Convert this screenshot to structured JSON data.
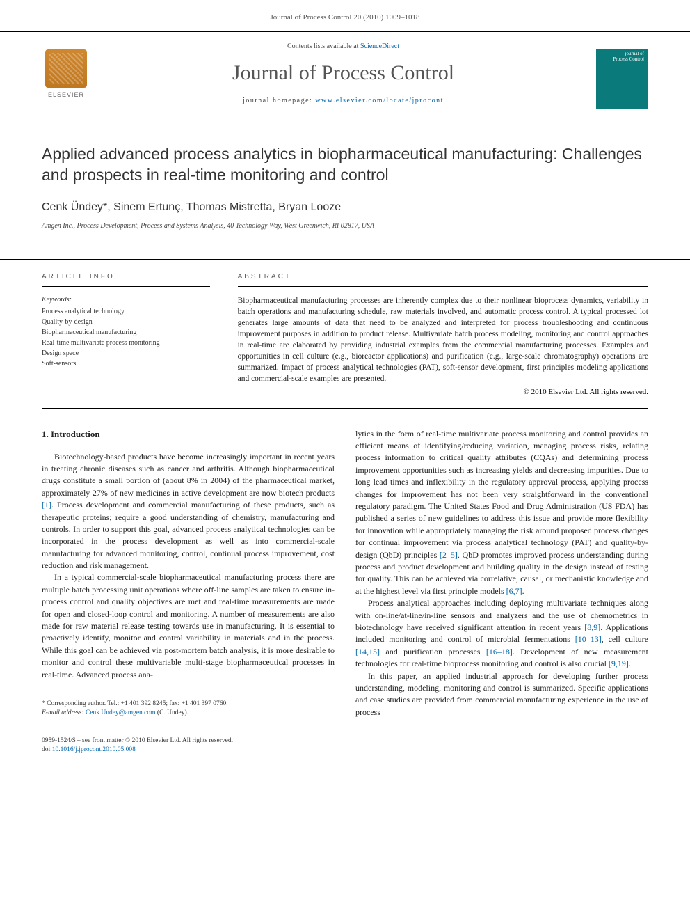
{
  "header": {
    "running_head": "Journal of Process Control 20 (2010) 1009–1018"
  },
  "masthead": {
    "publisher": "ELSEVIER",
    "contents_prefix": "Contents lists available at ",
    "contents_link": "ScienceDirect",
    "journal_title": "Journal of Process Control",
    "homepage_prefix": "journal homepage: ",
    "homepage_url": "www.elsevier.com/locate/jprocont",
    "cover_line1": "journal of",
    "cover_line2": "Process Control"
  },
  "article": {
    "title": "Applied advanced process analytics in biopharmaceutical manufacturing: Challenges and prospects in real-time monitoring and control",
    "authors": "Cenk Ündey*, Sinem Ertunç, Thomas Mistretta, Bryan Looze",
    "affiliation": "Amgen Inc., Process Development, Process and Systems Analysis, 40 Technology Way, West Greenwich, RI 02817, USA"
  },
  "info": {
    "label": "article info",
    "keywords_label": "Keywords:",
    "keywords": [
      "Process analytical technology",
      "Quality-by-design",
      "Biopharmaceutical manufacturing",
      "Real-time multivariate process monitoring",
      "Design space",
      "Soft-sensors"
    ]
  },
  "abstract": {
    "label": "abstract",
    "text": "Biopharmaceutical manufacturing processes are inherently complex due to their nonlinear bioprocess dynamics, variability in batch operations and manufacturing schedule, raw materials involved, and automatic process control. A typical processed lot generates large amounts of data that need to be analyzed and interpreted for process troubleshooting and continuous improvement purposes in addition to product release. Multivariate batch process modeling, monitoring and control approaches in real-time are elaborated by providing industrial examples from the commercial manufacturing processes. Examples and opportunities in cell culture (e.g., bioreactor applications) and purification (e.g., large-scale chromatography) operations are summarized. Impact of process analytical technologies (PAT), soft-sensor development, first principles modeling applications and commercial-scale examples are presented.",
    "copyright": "© 2010 Elsevier Ltd. All rights reserved."
  },
  "body": {
    "section_title": "1. Introduction",
    "col1_p1": "Biotechnology-based products have become increasingly important in recent years in treating chronic diseases such as cancer and arthritis. Although biopharmaceutical drugs constitute a small portion of (about 8% in 2004) of the pharmaceutical market, approximately 27% of new medicines in active development are now biotech products ",
    "col1_p1_ref": "[1]",
    "col1_p1b": ". Process development and commercial manufacturing of these products, such as therapeutic proteins; require a good understanding of chemistry, manufacturing and controls. In order to support this goal, advanced process analytical technologies can be incorporated in the process development as well as into commercial-scale manufacturing for advanced monitoring, control, continual process improvement, cost reduction and risk management.",
    "col1_p2": "In a typical commercial-scale biopharmaceutical manufacturing process there are multiple batch processing unit operations where off-line samples are taken to ensure in-process control and quality objectives are met and real-time measurements are made for open and closed-loop control and monitoring. A number of measurements are also made for raw material release testing towards use in manufacturing. It is essential to proactively identify, monitor and control variability in materials and in the process. While this goal can be achieved via post-mortem batch analysis, it is more desirable to monitor and control these multivariable multi-stage biopharmaceutical processes in real-time. Advanced process ana-",
    "col2_p1a": "lytics in the form of real-time multivariate process monitoring and control provides an efficient means of identifying/reducing variation, managing process risks, relating process information to critical quality attributes (CQAs) and determining process improvement opportunities such as increasing yields and decreasing impurities. Due to long lead times and inflexibility in the regulatory approval process, applying process changes for improvement has not been very straightforward in the conventional regulatory paradigm. The United States Food and Drug Administration (US FDA) has published a series of new guidelines to address this issue and provide more flexibility for innovation while appropriately managing the risk around proposed process changes for continual improvement via process analytical technology (PAT) and quality-by-design (QbD) principles ",
    "col2_p1_ref1": "[2–5]",
    "col2_p1b": ". QbD promotes improved process understanding during process and product development and building quality in the design instead of testing for quality. This can be achieved via correlative, causal, or mechanistic knowledge and at the highest level via first principle models ",
    "col2_p1_ref2": "[6,7]",
    "col2_p1c": ".",
    "col2_p2a": "Process analytical approaches including deploying multivariate techniques along with on-line/at-line/in-line sensors and analyzers and the use of chemometrics in biotechnology have received significant attention in recent years ",
    "col2_p2_ref1": "[8,9]",
    "col2_p2b": ". Applications included monitoring and control of microbial fermentations ",
    "col2_p2_ref2": "[10–13]",
    "col2_p2c": ", cell culture ",
    "col2_p2_ref3": "[14,15]",
    "col2_p2d": " and purification processes ",
    "col2_p2_ref4": "[16–18]",
    "col2_p2e": ". Development of new measurement technologies for real-time bioprocess monitoring and control is also crucial ",
    "col2_p2_ref5": "[9,19]",
    "col2_p2f": ".",
    "col2_p3": "In this paper, an applied industrial approach for developing further process understanding, modeling, monitoring and control is summarized. Specific applications and case studies are provided from commercial manufacturing experience in the use of process"
  },
  "footnote": {
    "corr_label": "* Corresponding author. Tel.: +1 401 392 8245; fax: +1 401 397 0760.",
    "email_label": "E-mail address: ",
    "email": "Cenk.Undey@amgen.com",
    "email_suffix": " (C. Ündey)."
  },
  "footer": {
    "issn_line": "0959-1524/$ – see front matter © 2010 Elsevier Ltd. All rights reserved.",
    "doi_label": "doi:",
    "doi": "10.1016/j.jprocont.2010.05.008"
  }
}
